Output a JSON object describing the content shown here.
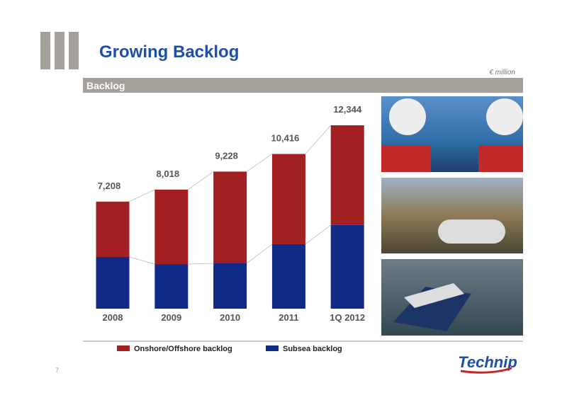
{
  "header": {
    "title": "Growing Backlog",
    "unit": "€ million",
    "section": "Backlog",
    "page_number": "7",
    "logo": "Technip"
  },
  "chart_data": {
    "type": "stacked-bar",
    "categories": [
      "2008",
      "2009",
      "2010",
      "2011",
      "1Q 2012"
    ],
    "series": [
      {
        "name": "Subsea backlog",
        "color": "#102a88",
        "values": [
          3480,
          3000,
          3050,
          4340,
          5630
        ]
      },
      {
        "name": "Onshore/Offshore backlog",
        "color": "#a21f22",
        "values": [
          3728,
          5018,
          6178,
          6076,
          6714
        ]
      }
    ],
    "totals": {
      "values": [
        7208,
        8018,
        9228,
        10416,
        12344
      ],
      "value_labels": [
        "7,208",
        "8,018",
        "9,228",
        "10,416",
        "12,344"
      ]
    },
    "legend_order": [
      1,
      0
    ]
  }
}
